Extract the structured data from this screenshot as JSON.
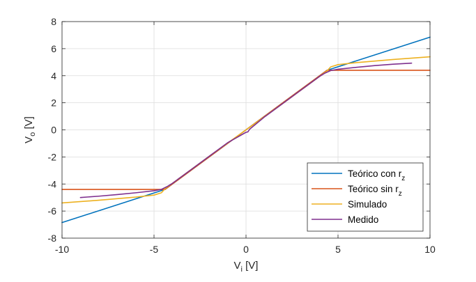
{
  "chart_data": {
    "type": "line",
    "title": "",
    "xlabel": {
      "main": "V",
      "sub": "i",
      "unit": " [V]"
    },
    "ylabel": {
      "main": "V",
      "sub": "o",
      "unit": " [V]"
    },
    "xlim": [
      -10,
      10
    ],
    "ylim": [
      -8,
      8
    ],
    "xticks": [
      -10,
      -5,
      0,
      5,
      10
    ],
    "yticks": [
      -8,
      -6,
      -4,
      -2,
      0,
      2,
      4,
      6,
      8
    ],
    "xtick_labels": [
      "-10",
      "-5",
      "0",
      "5",
      "10"
    ],
    "ytick_labels": [
      "-8",
      "-6",
      "-4",
      "-2",
      "0",
      "2",
      "4",
      "6",
      "8"
    ],
    "grid": true,
    "legend_position": "bottom-right",
    "series": [
      {
        "name": "Teórico con r",
        "name_sub": "z",
        "color": "#0072BD",
        "x": [
          -10,
          -4.4,
          4.4,
          10
        ],
        "y": [
          -6.85,
          -4.4,
          4.4,
          6.85
        ]
      },
      {
        "name": "Teórico sin r",
        "name_sub": "z",
        "color": "#D95319",
        "x": [
          -10,
          -4.4,
          4.4,
          10
        ],
        "y": [
          -4.4,
          -4.4,
          4.4,
          4.4
        ]
      },
      {
        "name": "Simulado",
        "name_sub": "",
        "color": "#EDB120",
        "x": [
          -10,
          -8,
          -6,
          -5,
          -4.6,
          -4.4,
          -4,
          -2,
          0,
          2,
          4,
          4.4,
          4.6,
          5,
          6,
          8,
          10
        ],
        "y": [
          -5.4,
          -5.2,
          -4.97,
          -4.82,
          -4.65,
          -4.35,
          -3.95,
          -1.95,
          0,
          1.95,
          3.95,
          4.35,
          4.65,
          4.82,
          4.97,
          5.2,
          5.4
        ]
      },
      {
        "name": "Medido",
        "name_sub": "",
        "color": "#7E2F8E",
        "x": [
          -9,
          -8,
          -7,
          -6,
          -5,
          -4.6,
          -4.3,
          -4,
          -3,
          -2,
          -1,
          0,
          0.1,
          0.2,
          1,
          2,
          3,
          4,
          4.3,
          4.6,
          5,
          6,
          7,
          8,
          9
        ],
        "y": [
          -5.0,
          -4.9,
          -4.78,
          -4.65,
          -4.5,
          -4.4,
          -4.2,
          -3.95,
          -2.95,
          -1.95,
          -0.95,
          -0.18,
          -0.15,
          0.05,
          0.95,
          1.95,
          2.95,
          3.95,
          4.2,
          4.38,
          4.48,
          4.62,
          4.75,
          4.85,
          4.93
        ]
      }
    ]
  }
}
